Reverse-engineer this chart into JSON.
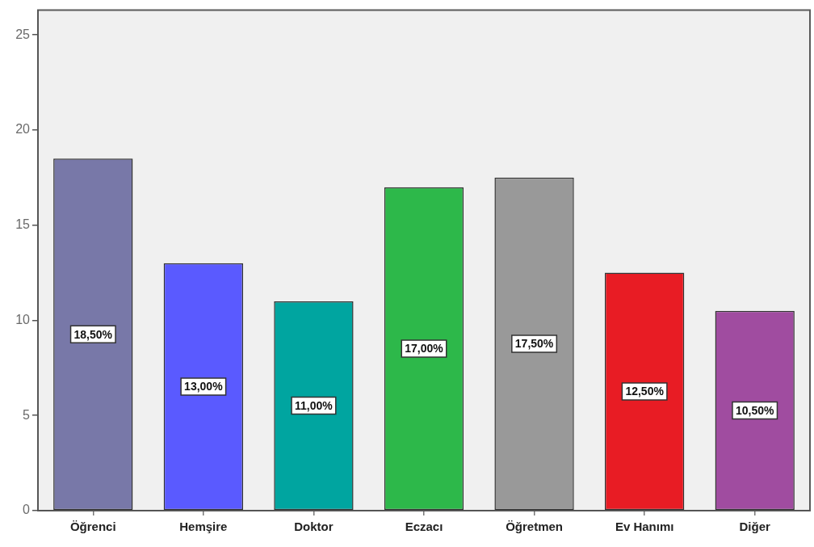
{
  "chart_data": {
    "type": "bar",
    "categories": [
      "Öğrenci",
      "Hemşire",
      "Doktor",
      "Eczacı",
      "Öğretmen",
      "Ev Hanımı",
      "Diğer"
    ],
    "values": [
      18.5,
      13,
      11,
      17,
      17.5,
      12.5,
      10.5
    ],
    "value_labels": [
      "18,50%",
      "13,00%",
      "11,00%",
      "17,00%",
      "17,50%",
      "12,50%",
      "10,50%"
    ],
    "colors": [
      "#7878a8",
      "#5a5aff",
      "#00a5a0",
      "#2db84a",
      "#999999",
      "#e81c24",
      "#a04ca0"
    ],
    "ylim": [
      0,
      26.3
    ],
    "yticks": [
      0,
      5,
      10,
      15,
      20,
      25
    ]
  }
}
